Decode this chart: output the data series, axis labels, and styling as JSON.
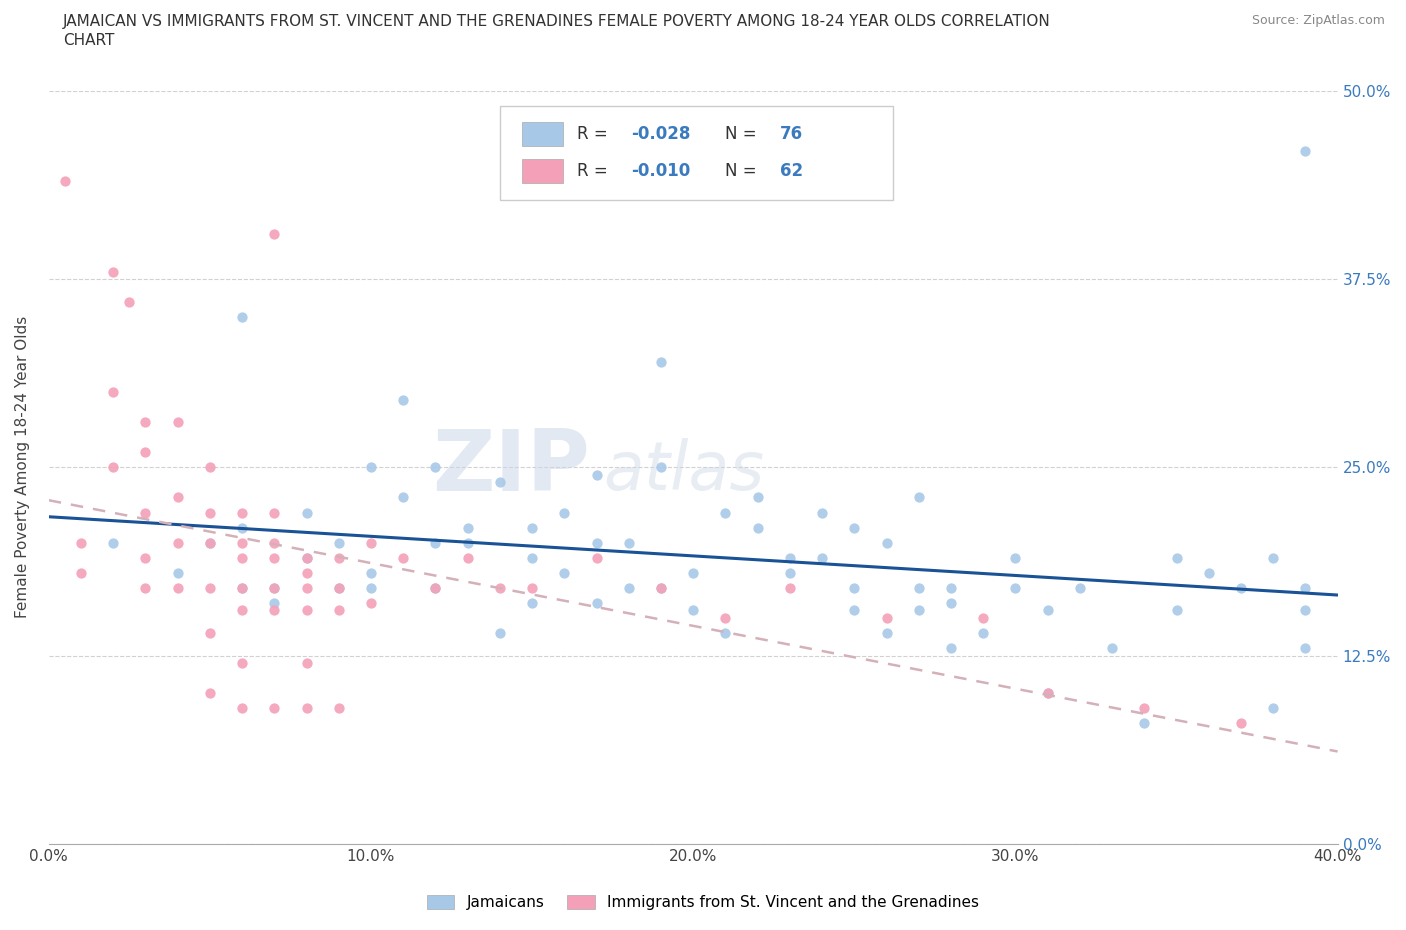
{
  "title_line1": "JAMAICAN VS IMMIGRANTS FROM ST. VINCENT AND THE GRENADINES FEMALE POVERTY AMONG 18-24 YEAR OLDS CORRELATION",
  "title_line2": "CHART",
  "source": "Source: ZipAtlas.com",
  "ylabel": "Female Poverty Among 18-24 Year Olds",
  "xlim": [
    0.0,
    0.4
  ],
  "ylim": [
    0.0,
    0.5
  ],
  "xticks": [
    0.0,
    0.1,
    0.2,
    0.3,
    0.4
  ],
  "yticks": [
    0.0,
    0.125,
    0.25,
    0.375,
    0.5
  ],
  "xtick_labels": [
    "0.0%",
    "10.0%",
    "20.0%",
    "30.0%",
    "40.0%"
  ],
  "ytick_labels": [
    "0.0%",
    "12.5%",
    "25.0%",
    "37.5%",
    "50.0%"
  ],
  "legend1_label": "Jamaicans",
  "legend2_label": "Immigrants from St. Vincent and the Grenadines",
  "R1": -0.028,
  "N1": 76,
  "R2": -0.01,
  "N2": 62,
  "color1": "#a8c8e8",
  "color2": "#f4a0b8",
  "trendline1_color": "#1a5296",
  "trendline2_color": "#d4b0b8",
  "background_color": "#ffffff",
  "watermark_zip": "ZIP",
  "watermark_atlas": "atlas",
  "jamaicans_x": [
    0.02,
    0.04,
    0.05,
    0.06,
    0.06,
    0.07,
    0.07,
    0.08,
    0.08,
    0.09,
    0.09,
    0.1,
    0.1,
    0.1,
    0.11,
    0.11,
    0.12,
    0.12,
    0.12,
    0.13,
    0.13,
    0.14,
    0.14,
    0.15,
    0.15,
    0.15,
    0.16,
    0.16,
    0.17,
    0.17,
    0.17,
    0.18,
    0.18,
    0.19,
    0.19,
    0.2,
    0.2,
    0.21,
    0.21,
    0.22,
    0.22,
    0.23,
    0.23,
    0.24,
    0.24,
    0.25,
    0.25,
    0.25,
    0.26,
    0.26,
    0.27,
    0.27,
    0.28,
    0.28,
    0.28,
    0.29,
    0.3,
    0.3,
    0.31,
    0.31,
    0.32,
    0.33,
    0.34,
    0.35,
    0.35,
    0.36,
    0.37,
    0.38,
    0.38,
    0.39,
    0.39,
    0.39,
    0.39,
    0.19,
    0.06,
    0.27
  ],
  "jamaicans_y": [
    0.2,
    0.18,
    0.2,
    0.21,
    0.17,
    0.17,
    0.16,
    0.22,
    0.19,
    0.17,
    0.2,
    0.25,
    0.18,
    0.17,
    0.295,
    0.23,
    0.2,
    0.25,
    0.17,
    0.21,
    0.2,
    0.14,
    0.24,
    0.21,
    0.19,
    0.16,
    0.22,
    0.18,
    0.2,
    0.16,
    0.245,
    0.2,
    0.17,
    0.17,
    0.25,
    0.155,
    0.18,
    0.22,
    0.14,
    0.21,
    0.23,
    0.19,
    0.18,
    0.22,
    0.19,
    0.17,
    0.21,
    0.155,
    0.14,
    0.2,
    0.155,
    0.17,
    0.13,
    0.17,
    0.16,
    0.14,
    0.19,
    0.17,
    0.155,
    0.1,
    0.17,
    0.13,
    0.08,
    0.155,
    0.19,
    0.18,
    0.17,
    0.19,
    0.09,
    0.17,
    0.155,
    0.13,
    0.46,
    0.32,
    0.35,
    0.23
  ],
  "svg_x": [
    0.005,
    0.01,
    0.01,
    0.02,
    0.02,
    0.02,
    0.025,
    0.03,
    0.03,
    0.03,
    0.03,
    0.03,
    0.04,
    0.04,
    0.04,
    0.04,
    0.05,
    0.05,
    0.05,
    0.05,
    0.05,
    0.05,
    0.06,
    0.06,
    0.06,
    0.06,
    0.06,
    0.06,
    0.06,
    0.07,
    0.07,
    0.07,
    0.07,
    0.07,
    0.07,
    0.08,
    0.08,
    0.08,
    0.08,
    0.08,
    0.08,
    0.09,
    0.09,
    0.09,
    0.09,
    0.1,
    0.1,
    0.11,
    0.12,
    0.13,
    0.14,
    0.15,
    0.17,
    0.19,
    0.21,
    0.23,
    0.26,
    0.29,
    0.31,
    0.34,
    0.37,
    0.07
  ],
  "svg_y": [
    0.44,
    0.2,
    0.18,
    0.38,
    0.3,
    0.25,
    0.36,
    0.28,
    0.26,
    0.22,
    0.19,
    0.17,
    0.28,
    0.23,
    0.2,
    0.17,
    0.25,
    0.22,
    0.2,
    0.17,
    0.14,
    0.1,
    0.22,
    0.2,
    0.19,
    0.17,
    0.155,
    0.12,
    0.09,
    0.22,
    0.2,
    0.19,
    0.17,
    0.155,
    0.09,
    0.19,
    0.18,
    0.17,
    0.155,
    0.12,
    0.09,
    0.19,
    0.17,
    0.155,
    0.09,
    0.2,
    0.16,
    0.19,
    0.17,
    0.19,
    0.17,
    0.17,
    0.19,
    0.17,
    0.15,
    0.17,
    0.15,
    0.15,
    0.1,
    0.09,
    0.08,
    0.405
  ]
}
